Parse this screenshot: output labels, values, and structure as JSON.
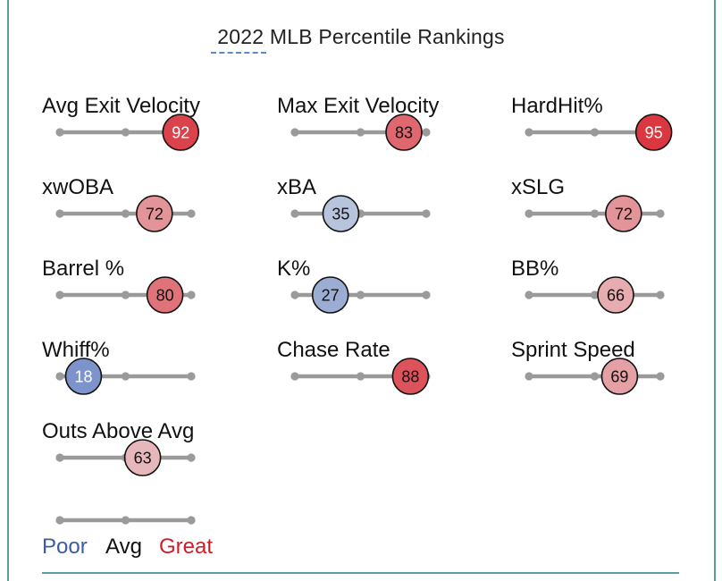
{
  "chart_data": {
    "type": "percentile-bubble",
    "title": "2022 MLB Percentile Rankings",
    "scale": [
      0,
      100
    ],
    "metrics": [
      {
        "name": "Avg Exit Velocity",
        "value": 92
      },
      {
        "name": "Max Exit Velocity",
        "value": 83
      },
      {
        "name": "HardHit%",
        "value": 95
      },
      {
        "name": "xwOBA",
        "value": 72
      },
      {
        "name": "xBA",
        "value": 35
      },
      {
        "name": "xSLG",
        "value": 72
      },
      {
        "name": "Barrel %",
        "value": 80
      },
      {
        "name": "K%",
        "value": 27
      },
      {
        "name": "BB%",
        "value": 66
      },
      {
        "name": "Whiff%",
        "value": 18
      },
      {
        "name": "Chase Rate",
        "value": 88
      },
      {
        "name": "Sprint Speed",
        "value": 69
      },
      {
        "name": "Outs Above Avg",
        "value": 63
      }
    ],
    "legend": {
      "poor": "Poor",
      "avg": "Avg",
      "great": "Great",
      "poor_color": "#3b5ca6",
      "avg_color": "#111111",
      "great_color": "#d01c2a"
    }
  }
}
